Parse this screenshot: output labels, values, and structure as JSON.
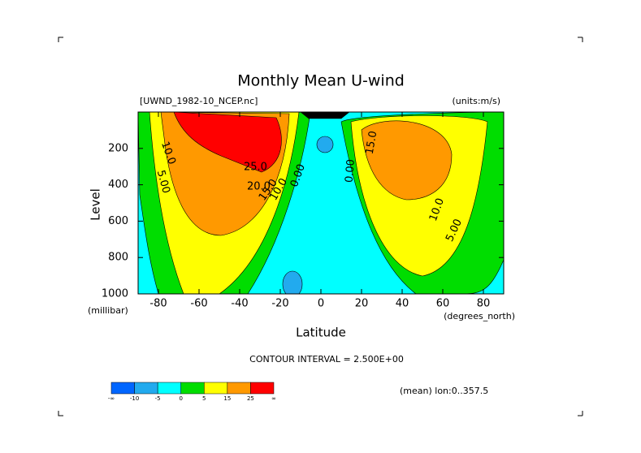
{
  "chart_data": {
    "type": "contour",
    "title": "Monthly Mean U-wind",
    "dataset": "[UWND_1982-10_NCEP.nc]",
    "units": "(units:m/s)",
    "y_label": "Level",
    "y_unit": "(millibar)",
    "x_label": "Latitude",
    "x_unit": "(degrees_north)",
    "xlim": [
      -90,
      90
    ],
    "xticks": [
      -80,
      -60,
      -40,
      -20,
      0,
      20,
      40,
      60,
      80
    ],
    "ylim": [
      1000,
      0
    ],
    "yticks": [
      200,
      400,
      600,
      800,
      1000
    ],
    "contour_interval": "CONTOUR INTERVAL = 2.500E+00",
    "footnote": "(mean) lon:0..357.5",
    "contour_labels": [
      {
        "value": 10,
        "label": "10.0"
      },
      {
        "value": 5,
        "label": "5.00"
      },
      {
        "value": 25,
        "label": "25.0"
      },
      {
        "value": 20,
        "label": "20.0"
      },
      {
        "value": 15,
        "label": "15.0"
      },
      {
        "value": 10,
        "label": "10.0"
      },
      {
        "value": 0,
        "label": "0.00"
      },
      {
        "value": 0,
        "label": "0.00"
      },
      {
        "value": 15,
        "label": "15.0"
      },
      {
        "value": 10,
        "label": "10.0"
      },
      {
        "value": 5,
        "label": "5.00"
      }
    ],
    "colorbar": {
      "colors": [
        "#0066ff",
        "#22aaee",
        "#00ffff",
        "#00dd00",
        "#ffff00",
        "#ff9900",
        "#ff0000"
      ],
      "ticks": [
        -10,
        -5,
        0,
        5,
        15,
        25
      ],
      "ends": [
        "-∞",
        "∞"
      ]
    }
  }
}
